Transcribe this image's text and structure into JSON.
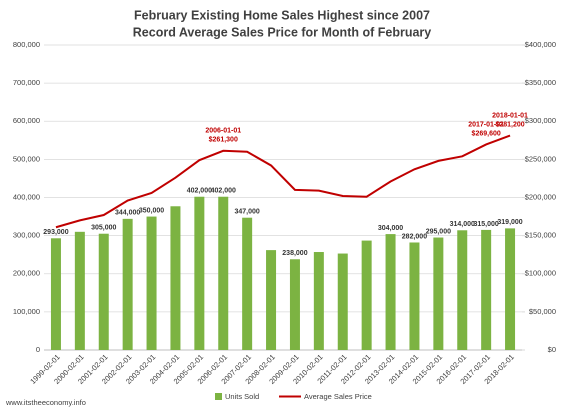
{
  "chart_data": {
    "type": "bar-line",
    "title": "February Existing Home Sales Highest since 2007",
    "subtitle": "Record Average Sales Price for Month of February",
    "source": "www.itstheeconomy.info",
    "categories": [
      "1999-02-01",
      "2000-02-01",
      "2001-02-01",
      "2002-02-01",
      "2003-02-01",
      "2004-02-01",
      "2005-02-01",
      "2006-02-01",
      "2007-02-01",
      "2008-02-01",
      "2009-02-01",
      "2010-02-01",
      "2011-02-01",
      "2012-02-01",
      "2013-02-01",
      "2014-02-01",
      "2015-02-01",
      "2016-02-01",
      "2017-02-01",
      "2018-02-01"
    ],
    "series": [
      {
        "name": "Units Sold",
        "type": "bar",
        "color": "#7cb342",
        "values": [
          293000,
          310000,
          305000,
          344000,
          350000,
          377000,
          402000,
          402000,
          347000,
          262000,
          238000,
          257000,
          253000,
          287000,
          304000,
          282000,
          295000,
          314000,
          315000,
          319000
        ],
        "value_labels": [
          "293,000",
          null,
          "305,000",
          "344,000",
          "350,000",
          null,
          "402,000",
          "402,000",
          "347,000",
          null,
          "238,000",
          null,
          null,
          null,
          "304,000",
          "282,000",
          "295,000",
          "314,000",
          "315,000",
          "319,000"
        ]
      },
      {
        "name": "Average Sales Price",
        "type": "line",
        "axis": "y2",
        "color": "#c00000",
        "values": [
          161000,
          170000,
          177000,
          196000,
          206000,
          226000,
          249000,
          261300,
          260000,
          242000,
          210000,
          209000,
          202000,
          201000,
          221000,
          237000,
          248000,
          254000,
          269600,
          281200
        ],
        "value_labels": [
          null,
          null,
          null,
          null,
          null,
          null,
          null,
          "$261,300",
          null,
          null,
          null,
          null,
          null,
          null,
          null,
          null,
          null,
          null,
          "$269,600",
          "$281,200"
        ],
        "date_labels": [
          null,
          null,
          null,
          null,
          null,
          null,
          null,
          "2006-01-01",
          null,
          null,
          null,
          null,
          null,
          null,
          null,
          null,
          null,
          null,
          "2017-01-01",
          "2018-01-01"
        ]
      }
    ],
    "ylim": [
      0,
      800000
    ],
    "yticks": [
      {
        "value": 0,
        "label": "0"
      },
      {
        "value": 100000,
        "label": "100,000"
      },
      {
        "value": 200000,
        "label": "200,000"
      },
      {
        "value": 300000,
        "label": "300,000"
      },
      {
        "value": 400000,
        "label": "400,000"
      },
      {
        "value": 500000,
        "label": "500,000"
      },
      {
        "value": 600000,
        "label": "600,000"
      },
      {
        "value": 700000,
        "label": "700,000"
      },
      {
        "value": 800000,
        "label": "800,000"
      }
    ],
    "y2lim": [
      0,
      400000
    ],
    "y2ticks": [
      {
        "value": 0,
        "label": "$0"
      },
      {
        "value": 50000,
        "label": "$50,000"
      },
      {
        "value": 100000,
        "label": "$100,000"
      },
      {
        "value": 150000,
        "label": "$150,000"
      },
      {
        "value": 200000,
        "label": "$200,000"
      },
      {
        "value": 250000,
        "label": "$250,000"
      },
      {
        "value": 300000,
        "label": "$300,000"
      },
      {
        "value": 350000,
        "label": "$350,000"
      },
      {
        "value": 400000,
        "label": "$400,000"
      }
    ],
    "grid": true,
    "legend": "bottom"
  }
}
